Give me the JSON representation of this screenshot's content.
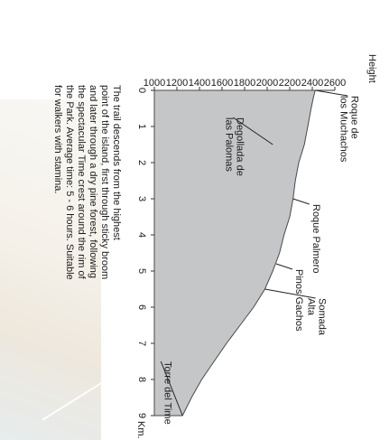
{
  "chart_data": {
    "type": "area",
    "ylabel": "Height",
    "xlabel": "Km.",
    "ylim": [
      1000,
      2600
    ],
    "xlim": [
      0,
      9
    ],
    "x_ticks": [
      "0",
      "1",
      "2",
      "3",
      "4",
      "5",
      "6",
      "7",
      "8",
      "9"
    ],
    "y_ticks": [
      "1000",
      "1200",
      "1400",
      "1600",
      "1800",
      "2000",
      "2200",
      "2400",
      "2600"
    ],
    "x": [
      0,
      0.2,
      0.5,
      1.0,
      1.5,
      2.0,
      2.5,
      3.0,
      3.5,
      4.0,
      4.5,
      5.0,
      5.5,
      6.0,
      6.5,
      7.0,
      7.5,
      8.0,
      8.5,
      9.0
    ],
    "y": [
      2426,
      2410,
      2390,
      2360,
      2330,
      2280,
      2250,
      2230,
      2200,
      2150,
      2110,
      2050,
      1980,
      1880,
      1760,
      1640,
      1530,
      1420,
      1330,
      1250
    ],
    "annotations": [
      {
        "lines": [
          "Roque de",
          "los Muchachos"
        ],
        "x": 0.0,
        "y": 2426
      },
      {
        "lines": [
          "Degollada de",
          "las Palomas"
        ],
        "x": 1.5,
        "y": 2050
      },
      {
        "lines": [
          "Roque Palmero"
        ],
        "x": 3.0,
        "y": 2230
      },
      {
        "lines": [
          "Pinos Gachos"
        ],
        "x": 4.8,
        "y": 2080
      },
      {
        "lines": [
          "Somada",
          "Alta"
        ],
        "x": 5.5,
        "y": 1980
      },
      {
        "lines": [
          "Torre del Time"
        ],
        "x": 9.0,
        "y": 1250
      }
    ]
  },
  "description": [
    "The trail descends from the highest",
    "point of the island, first through sticky broom",
    "and later through a dry pine forest, following",
    "the spectacular Time crest around the rim of",
    "the Park. Average time: 5 - 6 hours. Suitable",
    "for walkers with stamina."
  ],
  "colors": {
    "fill": "#c4c6c7",
    "stroke": "#4a4a4a",
    "text": "#1a1a1a"
  }
}
